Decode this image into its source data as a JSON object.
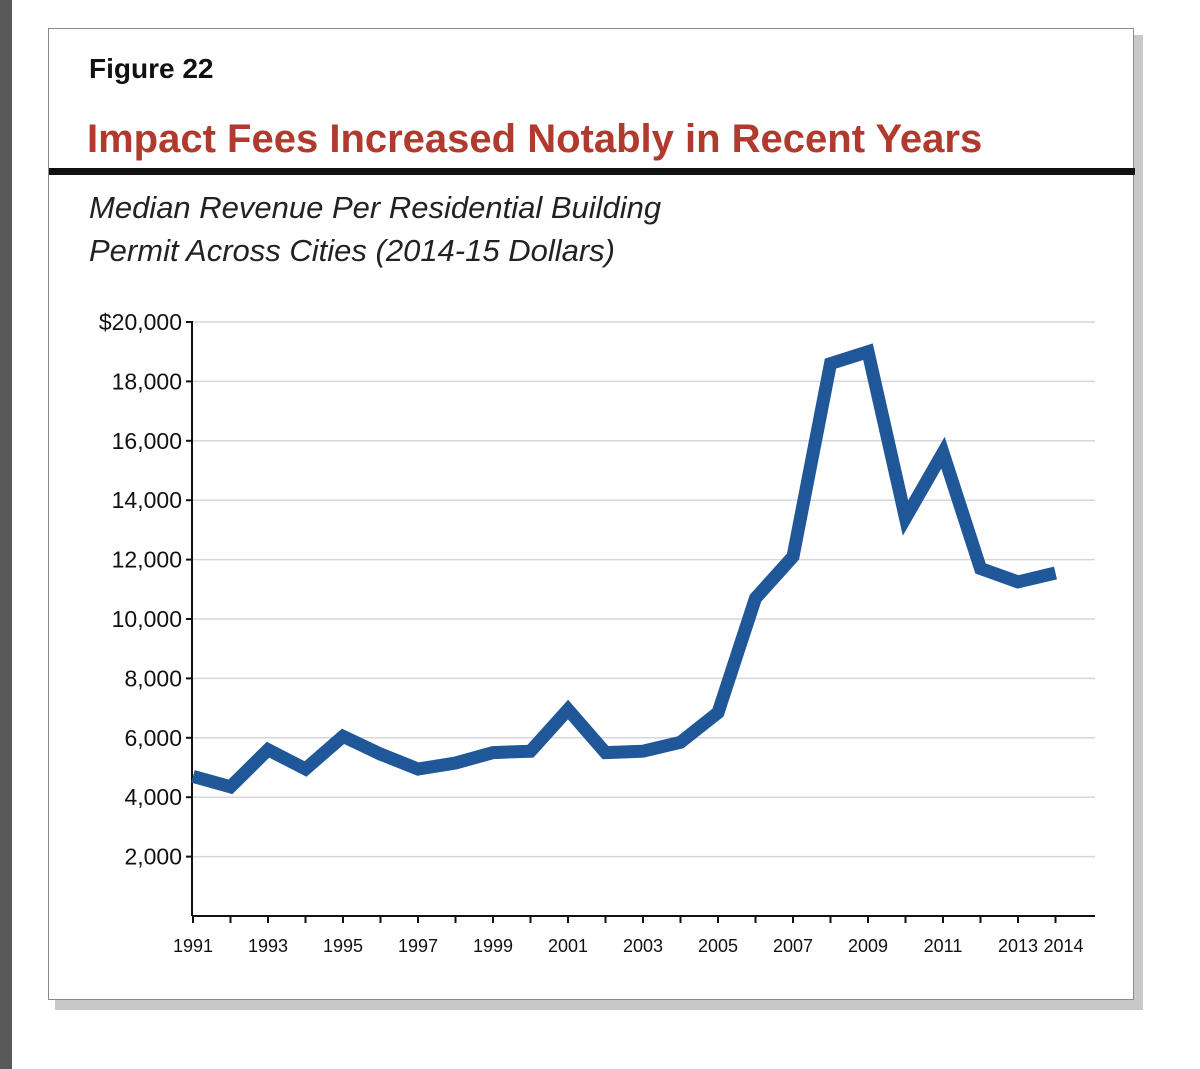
{
  "figure": {
    "label": "Figure 22",
    "title": "Impact Fees Increased Notably in Recent Years",
    "subtitle_line1": "Median Revenue Per Residential Building",
    "subtitle_line2": "Permit Across Cities (2014-15 Dollars)"
  },
  "colors": {
    "title": "#b03a2e",
    "line": "#1f5799",
    "grid": "#d6d6e2",
    "axis": "#111111"
  },
  "chart_data": {
    "type": "line",
    "title": "Impact Fees Increased Notably in Recent Years",
    "subtitle": "Median Revenue Per Residential Building Permit Across Cities (2014-15 Dollars)",
    "xlabel": "",
    "ylabel": "",
    "ylim": [
      0,
      20000
    ],
    "grid": true,
    "y_ticks": [
      2000,
      4000,
      6000,
      8000,
      10000,
      12000,
      14000,
      16000,
      18000,
      20000
    ],
    "y_tick_labels": [
      "2,000",
      "4,000",
      "6,000",
      "8,000",
      "10,000",
      "12,000",
      "14,000",
      "16,000",
      "18,000",
      "$20,000"
    ],
    "x_tick_labels": [
      "1991",
      "1993",
      "1995",
      "1997",
      "1999",
      "2001",
      "2003",
      "2005",
      "2007",
      "2009",
      "2011",
      "2013",
      "2014"
    ],
    "series": [
      {
        "name": "Median Revenue Per Residential Building Permit",
        "x": [
          1991,
          1992,
          1993,
          1994,
          1995,
          1996,
          1997,
          1998,
          1999,
          2000,
          2001,
          2002,
          2003,
          2004,
          2005,
          2006,
          2007,
          2008,
          2009,
          2010,
          2011,
          2012,
          2013,
          2014
        ],
        "values": [
          4700,
          4350,
          5600,
          4950,
          6050,
          5450,
          4950,
          5150,
          5500,
          5550,
          6950,
          5500,
          5550,
          5850,
          6850,
          10700,
          12100,
          18600,
          19000,
          13400,
          15600,
          11700,
          11250,
          11550
        ]
      }
    ]
  }
}
